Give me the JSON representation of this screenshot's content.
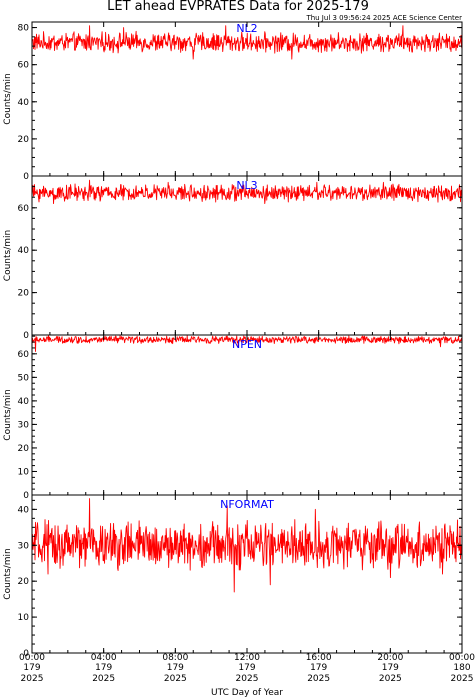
{
  "header": {
    "title": "LET ahead EVPRATES Data for 2025-179",
    "timestamp": "Thu Jul  3 09:56:24 2025 ACE Science Center"
  },
  "xaxis": {
    "label": "UTC Day of Year",
    "ticks": [
      {
        "hours": 0,
        "time": "00:00",
        "doy": "179",
        "year": "2025"
      },
      {
        "hours": 4,
        "time": "04:00",
        "doy": "179",
        "year": "2025"
      },
      {
        "hours": 8,
        "time": "08:00",
        "doy": "179",
        "year": "2025"
      },
      {
        "hours": 12,
        "time": "12:00",
        "doy": "179",
        "year": "2025"
      },
      {
        "hours": 16,
        "time": "16:00",
        "doy": "179",
        "year": "2025"
      },
      {
        "hours": 20,
        "time": "20:00",
        "doy": "179",
        "year": "2025"
      },
      {
        "hours": 24,
        "time": "00:00",
        "doy": "180",
        "year": "2025"
      }
    ],
    "range_hours": [
      0,
      24
    ]
  },
  "colors": {
    "series": "#ff0000",
    "label": "#0000ff",
    "frame": "#000000"
  },
  "chart_data": [
    {
      "type": "line",
      "series_name": "NL2",
      "ylabel": "Counts/min",
      "ylim": [
        0,
        83
      ],
      "yticks": [
        0,
        20,
        40,
        60,
        80
      ],
      "x_range_hours": [
        0,
        24
      ],
      "typical": 72,
      "noise_amp": 4,
      "spikes": [
        {
          "hour": 3.2,
          "value": 81
        },
        {
          "hour": 5.1,
          "value": 80
        },
        {
          "hour": 10.8,
          "value": 81
        },
        {
          "hour": 20.7,
          "value": 81
        },
        {
          "hour": 9.0,
          "value": 63
        },
        {
          "hour": 14.5,
          "value": 63
        }
      ]
    },
    {
      "type": "line",
      "series_name": "NL3",
      "ylabel": "Counts/min",
      "ylim": [
        0,
        75
      ],
      "yticks": [
        0,
        20,
        40,
        60
      ],
      "x_range_hours": [
        0,
        24
      ],
      "typical": 67,
      "noise_amp": 3,
      "spikes": [
        {
          "hour": 3.2,
          "value": 73
        },
        {
          "hour": 7.6,
          "value": 72
        },
        {
          "hour": 15.9,
          "value": 72
        },
        {
          "hour": 19.6,
          "value": 72
        },
        {
          "hour": 1.2,
          "value": 62
        },
        {
          "hour": 13.0,
          "value": 62
        }
      ]
    },
    {
      "type": "line",
      "series_name": "NPEN",
      "ylabel": "Counts/min",
      "ylim": [
        0,
        68
      ],
      "yticks": [
        0,
        10,
        20,
        30,
        40,
        50,
        60
      ],
      "x_range_hours": [
        0,
        24
      ],
      "typical": 66,
      "noise_amp": 1.2,
      "spikes": [
        {
          "hour": 0.2,
          "value": 61
        },
        {
          "hour": 11.5,
          "value": 63
        },
        {
          "hour": 22.8,
          "value": 63
        }
      ]
    },
    {
      "type": "line",
      "series_name": "NFORMAT",
      "ylabel": "Counts/min",
      "ylim": [
        0,
        44
      ],
      "yticks": [
        0,
        10,
        20,
        30,
        40
      ],
      "x_range_hours": [
        0,
        24
      ],
      "typical": 30,
      "noise_amp": 5,
      "spikes": [
        {
          "hour": 3.2,
          "value": 43
        },
        {
          "hour": 10.9,
          "value": 41
        },
        {
          "hour": 11.3,
          "value": 17
        },
        {
          "hour": 13.3,
          "value": 19
        },
        {
          "hour": 15.8,
          "value": 40
        },
        {
          "hour": 20.0,
          "value": 21
        },
        {
          "hour": 22.9,
          "value": 22
        },
        {
          "hour": 0.9,
          "value": 22
        }
      ]
    }
  ]
}
